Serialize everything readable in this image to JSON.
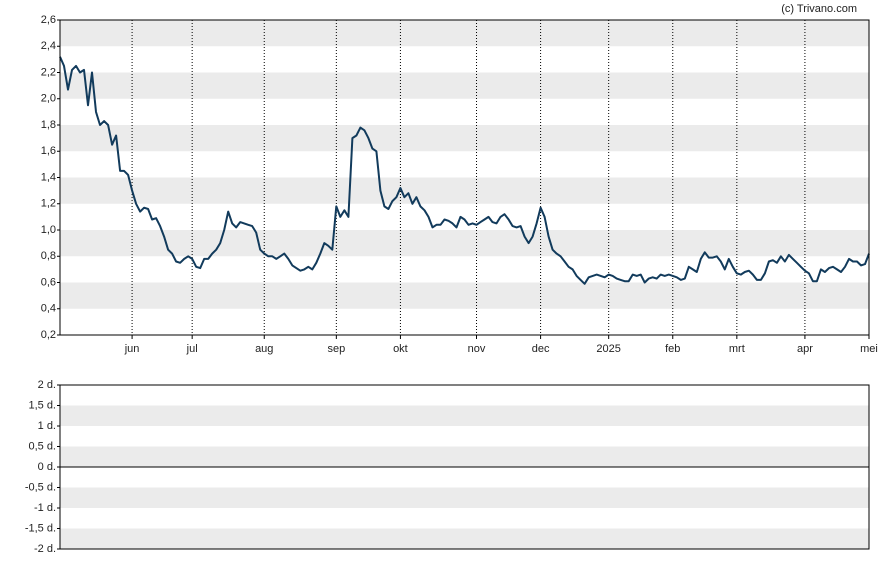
{
  "chart_data": [
    {
      "type": "line",
      "annotation": "(c) Trivano.com",
      "color": "#123b5c",
      "grid": true,
      "xlim": [
        0,
        202
      ],
      "xticks": [
        {
          "value": 18,
          "label": "jun"
        },
        {
          "value": 33,
          "label": "jul"
        },
        {
          "value": 51,
          "label": "aug"
        },
        {
          "value": 69,
          "label": "sep"
        },
        {
          "value": 85,
          "label": "okt"
        },
        {
          "value": 104,
          "label": "nov"
        },
        {
          "value": 120,
          "label": "dec"
        },
        {
          "value": 137,
          "label": "2025"
        },
        {
          "value": 153,
          "label": "feb"
        },
        {
          "value": 169,
          "label": "mrt"
        },
        {
          "value": 186,
          "label": "apr"
        },
        {
          "value": 202,
          "label": "mei"
        }
      ],
      "ylim": [
        0.2,
        2.6
      ],
      "yticks": [
        {
          "value": 0.2,
          "label": "0,2"
        },
        {
          "value": 0.4,
          "label": "0,4"
        },
        {
          "value": 0.6,
          "label": "0,6"
        },
        {
          "value": 0.8,
          "label": "0,8"
        },
        {
          "value": 1.0,
          "label": "1,0"
        },
        {
          "value": 1.2,
          "label": "1,2"
        },
        {
          "value": 1.4,
          "label": "1,4"
        },
        {
          "value": 1.6,
          "label": "1,6"
        },
        {
          "value": 1.8,
          "label": "1,8"
        },
        {
          "value": 2.0,
          "label": "2,0"
        },
        {
          "value": 2.2,
          "label": "2,2"
        },
        {
          "value": 2.4,
          "label": "2,4"
        },
        {
          "value": 2.6,
          "label": "2,6"
        }
      ],
      "values": [
        2.32,
        2.25,
        2.07,
        2.22,
        2.25,
        2.2,
        2.22,
        1.95,
        2.2,
        1.9,
        1.8,
        1.83,
        1.8,
        1.65,
        1.72,
        1.45,
        1.45,
        1.42,
        1.3,
        1.2,
        1.14,
        1.17,
        1.16,
        1.08,
        1.09,
        1.03,
        0.95,
        0.85,
        0.82,
        0.76,
        0.75,
        0.78,
        0.8,
        0.78,
        0.72,
        0.71,
        0.78,
        0.78,
        0.82,
        0.85,
        0.9,
        1.0,
        1.14,
        1.05,
        1.02,
        1.06,
        1.05,
        1.04,
        1.03,
        0.98,
        0.85,
        0.82,
        0.8,
        0.8,
        0.78,
        0.8,
        0.82,
        0.78,
        0.73,
        0.71,
        0.69,
        0.7,
        0.72,
        0.7,
        0.75,
        0.82,
        0.9,
        0.88,
        0.85,
        1.18,
        1.1,
        1.15,
        1.1,
        1.7,
        1.72,
        1.78,
        1.76,
        1.7,
        1.62,
        1.6,
        1.3,
        1.18,
        1.16,
        1.22,
        1.25,
        1.32,
        1.25,
        1.28,
        1.2,
        1.25,
        1.18,
        1.15,
        1.1,
        1.02,
        1.04,
        1.04,
        1.08,
        1.07,
        1.05,
        1.02,
        1.1,
        1.08,
        1.04,
        1.05,
        1.04,
        1.06,
        1.08,
        1.1,
        1.06,
        1.05,
        1.1,
        1.12,
        1.08,
        1.03,
        1.02,
        1.03,
        0.95,
        0.9,
        0.95,
        1.05,
        1.17,
        1.1,
        0.95,
        0.85,
        0.82,
        0.8,
        0.76,
        0.72,
        0.7,
        0.65,
        0.62,
        0.59,
        0.64,
        0.65,
        0.66,
        0.65,
        0.64,
        0.66,
        0.65,
        0.63,
        0.62,
        0.61,
        0.61,
        0.66,
        0.65,
        0.66,
        0.6,
        0.63,
        0.64,
        0.63,
        0.66,
        0.65,
        0.66,
        0.65,
        0.64,
        0.62,
        0.63,
        0.72,
        0.7,
        0.68,
        0.78,
        0.83,
        0.79,
        0.79,
        0.8,
        0.76,
        0.7,
        0.78,
        0.72,
        0.67,
        0.66,
        0.68,
        0.69,
        0.66,
        0.62,
        0.62,
        0.67,
        0.76,
        0.77,
        0.75,
        0.8,
        0.76,
        0.81,
        0.78,
        0.75,
        0.72,
        0.69,
        0.67,
        0.61,
        0.61,
        0.7,
        0.68,
        0.71,
        0.72,
        0.7,
        0.68,
        0.72,
        0.78,
        0.76,
        0.76,
        0.73,
        0.74,
        0.82
      ]
    },
    {
      "type": "line",
      "grid": true,
      "ylim": [
        -2,
        2
      ],
      "yticks": [
        {
          "value": -2,
          "label": "-2 d."
        },
        {
          "value": -1.5,
          "label": "-1,5 d."
        },
        {
          "value": -1,
          "label": "-1 d."
        },
        {
          "value": -0.5,
          "label": "-0,5 d."
        },
        {
          "value": 0,
          "label": "0 d."
        },
        {
          "value": 0.5,
          "label": "0,5 d."
        },
        {
          "value": 1,
          "label": "1 d."
        },
        {
          "value": 1.5,
          "label": "1,5 d."
        },
        {
          "value": 2,
          "label": "2 d."
        }
      ]
    }
  ]
}
